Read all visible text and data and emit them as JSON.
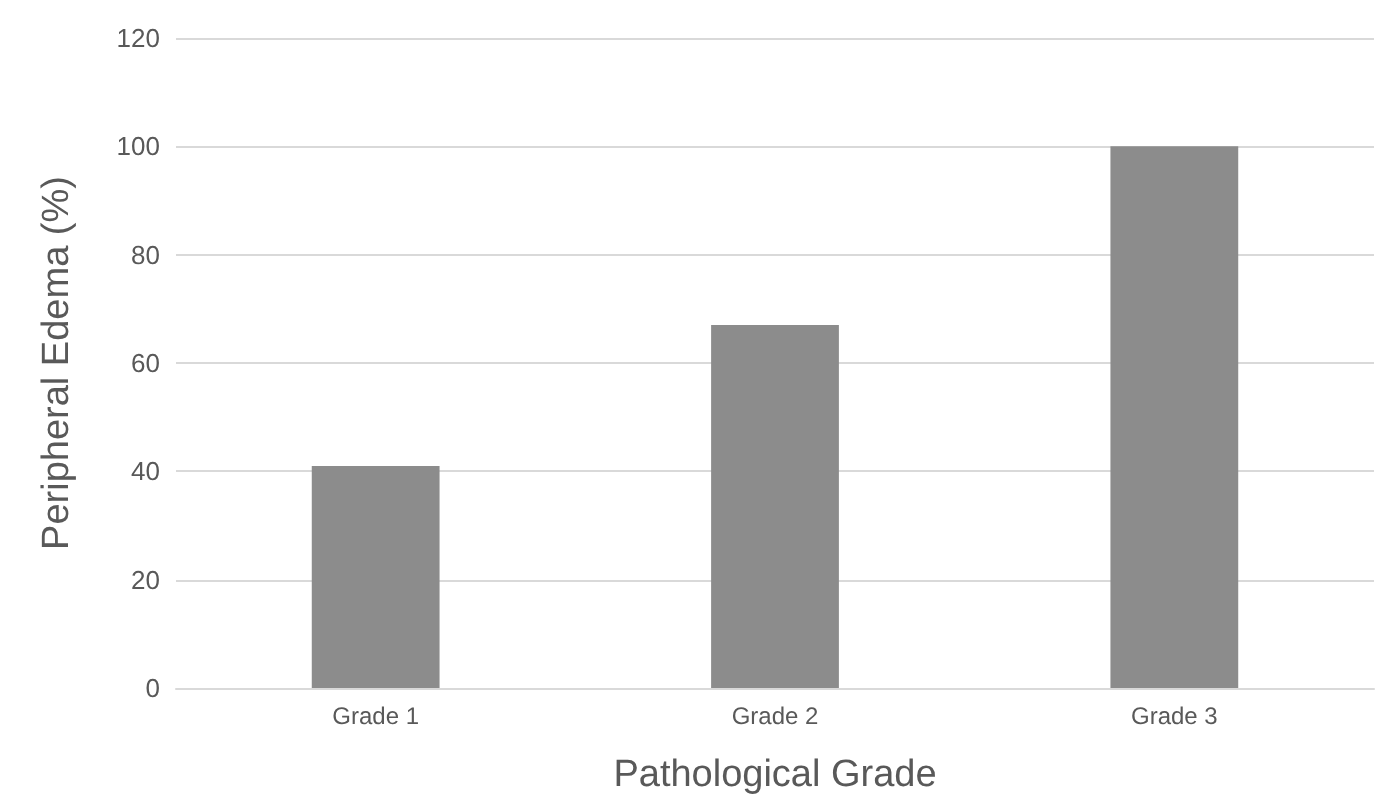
{
  "chart_data": {
    "type": "bar",
    "xlabel": "Pathological Grade",
    "ylabel": "Peripheral Edema (%)",
    "categories": [
      "Grade 1",
      "Grade 2",
      "Grade 3"
    ],
    "values": [
      41,
      67,
      100
    ],
    "color": "#8c8c8c",
    "ylim": [
      0,
      120
    ],
    "yticks": [
      0,
      20,
      40,
      60,
      80,
      100,
      120
    ],
    "grid": "y"
  }
}
